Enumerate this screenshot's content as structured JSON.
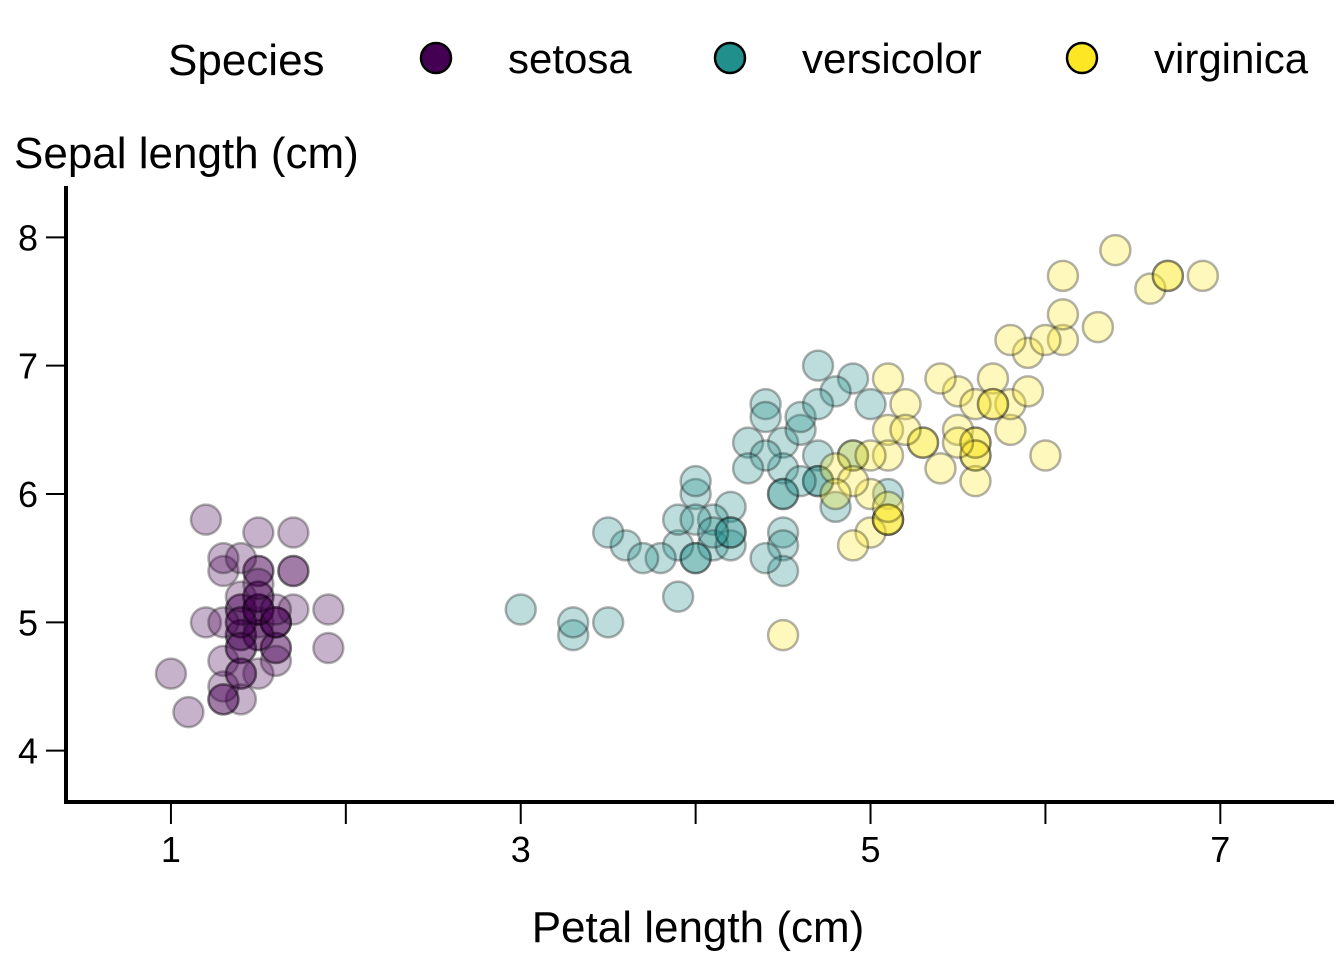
{
  "chart_data": {
    "type": "scatter",
    "xlabel": "Petal length (cm)",
    "ylabel": "Sepal length (cm)",
    "xlim": [
      0.4,
      7.65
    ],
    "ylim": [
      3.6,
      8.4
    ],
    "xticks": [
      1,
      2,
      3,
      4,
      5,
      6,
      7
    ],
    "xticklabels": [
      "1",
      "",
      "3",
      "",
      "5",
      "",
      "7"
    ],
    "yticks": [
      4,
      5,
      6,
      7,
      8
    ],
    "yticklabels": [
      "4",
      "5",
      "6",
      "7",
      "8"
    ],
    "grid": false,
    "legend": {
      "title": "Species",
      "position": "top"
    },
    "series": [
      {
        "name": "setosa",
        "color": "#440154",
        "points": [
          [
            1.4,
            5.1
          ],
          [
            1.4,
            4.9
          ],
          [
            1.3,
            4.7
          ],
          [
            1.5,
            4.6
          ],
          [
            1.4,
            5.0
          ],
          [
            1.7,
            5.4
          ],
          [
            1.4,
            4.6
          ],
          [
            1.5,
            5.0
          ],
          [
            1.4,
            4.4
          ],
          [
            1.5,
            4.9
          ],
          [
            1.5,
            5.4
          ],
          [
            1.6,
            4.8
          ],
          [
            1.4,
            4.8
          ],
          [
            1.1,
            4.3
          ],
          [
            1.2,
            5.8
          ],
          [
            1.5,
            5.7
          ],
          [
            1.3,
            5.4
          ],
          [
            1.4,
            5.1
          ],
          [
            1.7,
            5.7
          ],
          [
            1.5,
            5.1
          ],
          [
            1.7,
            5.4
          ],
          [
            1.5,
            5.1
          ],
          [
            1.0,
            4.6
          ],
          [
            1.7,
            5.1
          ],
          [
            1.9,
            4.8
          ],
          [
            1.6,
            5.0
          ],
          [
            1.6,
            5.0
          ],
          [
            1.5,
            5.2
          ],
          [
            1.4,
            5.2
          ],
          [
            1.6,
            4.7
          ],
          [
            1.6,
            4.8
          ],
          [
            1.5,
            5.4
          ],
          [
            1.5,
            5.2
          ],
          [
            1.4,
            5.5
          ],
          [
            1.5,
            4.9
          ],
          [
            1.2,
            5.0
          ],
          [
            1.3,
            5.5
          ],
          [
            1.4,
            4.9
          ],
          [
            1.3,
            4.4
          ],
          [
            1.5,
            5.1
          ],
          [
            1.3,
            5.0
          ],
          [
            1.3,
            4.5
          ],
          [
            1.3,
            4.4
          ],
          [
            1.6,
            5.0
          ],
          [
            1.9,
            5.1
          ],
          [
            1.4,
            4.8
          ],
          [
            1.6,
            5.1
          ],
          [
            1.4,
            4.6
          ],
          [
            1.5,
            5.3
          ],
          [
            1.4,
            5.0
          ]
        ]
      },
      {
        "name": "versicolor",
        "color": "#21908C",
        "points": [
          [
            4.7,
            7.0
          ],
          [
            4.5,
            6.4
          ],
          [
            4.9,
            6.9
          ],
          [
            4.0,
            5.5
          ],
          [
            4.6,
            6.5
          ],
          [
            4.5,
            5.7
          ],
          [
            4.7,
            6.3
          ],
          [
            3.3,
            4.9
          ],
          [
            4.6,
            6.6
          ],
          [
            3.9,
            5.2
          ],
          [
            3.5,
            5.0
          ],
          [
            4.2,
            5.9
          ],
          [
            4.0,
            6.0
          ],
          [
            4.7,
            6.1
          ],
          [
            3.6,
            5.6
          ],
          [
            4.4,
            6.7
          ],
          [
            4.5,
            5.6
          ],
          [
            4.1,
            5.8
          ],
          [
            4.5,
            6.2
          ],
          [
            3.9,
            5.6
          ],
          [
            4.8,
            5.9
          ],
          [
            4.0,
            6.1
          ],
          [
            4.9,
            6.3
          ],
          [
            4.7,
            6.1
          ],
          [
            4.3,
            6.4
          ],
          [
            4.4,
            6.6
          ],
          [
            4.8,
            6.8
          ],
          [
            5.0,
            6.7
          ],
          [
            4.5,
            6.0
          ],
          [
            3.5,
            5.7
          ],
          [
            3.8,
            5.5
          ],
          [
            3.7,
            5.5
          ],
          [
            3.9,
            5.8
          ],
          [
            5.1,
            6.0
          ],
          [
            4.5,
            5.4
          ],
          [
            4.5,
            6.0
          ],
          [
            4.7,
            6.7
          ],
          [
            4.4,
            6.3
          ],
          [
            4.1,
            5.6
          ],
          [
            4.0,
            5.5
          ],
          [
            4.4,
            5.5
          ],
          [
            4.6,
            6.1
          ],
          [
            4.0,
            5.8
          ],
          [
            3.3,
            5.0
          ],
          [
            4.2,
            5.6
          ],
          [
            4.2,
            5.7
          ],
          [
            4.2,
            5.7
          ],
          [
            4.3,
            6.2
          ],
          [
            3.0,
            5.1
          ],
          [
            4.1,
            5.7
          ]
        ]
      },
      {
        "name": "virginica",
        "color": "#FDE725",
        "points": [
          [
            6.0,
            6.3
          ],
          [
            5.1,
            5.8
          ],
          [
            5.9,
            7.1
          ],
          [
            5.6,
            6.3
          ],
          [
            5.8,
            6.5
          ],
          [
            6.6,
            7.6
          ],
          [
            4.5,
            4.9
          ],
          [
            6.3,
            7.3
          ],
          [
            5.8,
            6.7
          ],
          [
            6.1,
            7.2
          ],
          [
            5.1,
            6.5
          ],
          [
            5.3,
            6.4
          ],
          [
            5.5,
            6.8
          ],
          [
            5.0,
            5.7
          ],
          [
            5.1,
            5.8
          ],
          [
            5.3,
            6.4
          ],
          [
            5.5,
            6.5
          ],
          [
            6.7,
            7.7
          ],
          [
            6.9,
            7.7
          ],
          [
            5.0,
            6.0
          ],
          [
            5.7,
            6.9
          ],
          [
            4.9,
            5.6
          ],
          [
            6.7,
            7.7
          ],
          [
            4.9,
            6.3
          ],
          [
            5.7,
            6.7
          ],
          [
            6.0,
            7.2
          ],
          [
            4.8,
            6.2
          ],
          [
            4.9,
            6.1
          ],
          [
            5.6,
            6.4
          ],
          [
            5.8,
            7.2
          ],
          [
            6.1,
            7.4
          ],
          [
            6.4,
            7.9
          ],
          [
            5.6,
            6.4
          ],
          [
            5.1,
            6.3
          ],
          [
            5.6,
            6.1
          ],
          [
            6.1,
            7.7
          ],
          [
            5.6,
            6.3
          ],
          [
            5.5,
            6.4
          ],
          [
            4.8,
            6.0
          ],
          [
            5.4,
            6.9
          ],
          [
            5.6,
            6.7
          ],
          [
            5.1,
            6.9
          ],
          [
            5.1,
            5.8
          ],
          [
            5.9,
            6.8
          ],
          [
            5.7,
            6.7
          ],
          [
            5.2,
            6.7
          ],
          [
            5.0,
            6.3
          ],
          [
            5.2,
            6.5
          ],
          [
            5.4,
            6.2
          ],
          [
            5.1,
            5.9
          ]
        ]
      }
    ]
  }
}
